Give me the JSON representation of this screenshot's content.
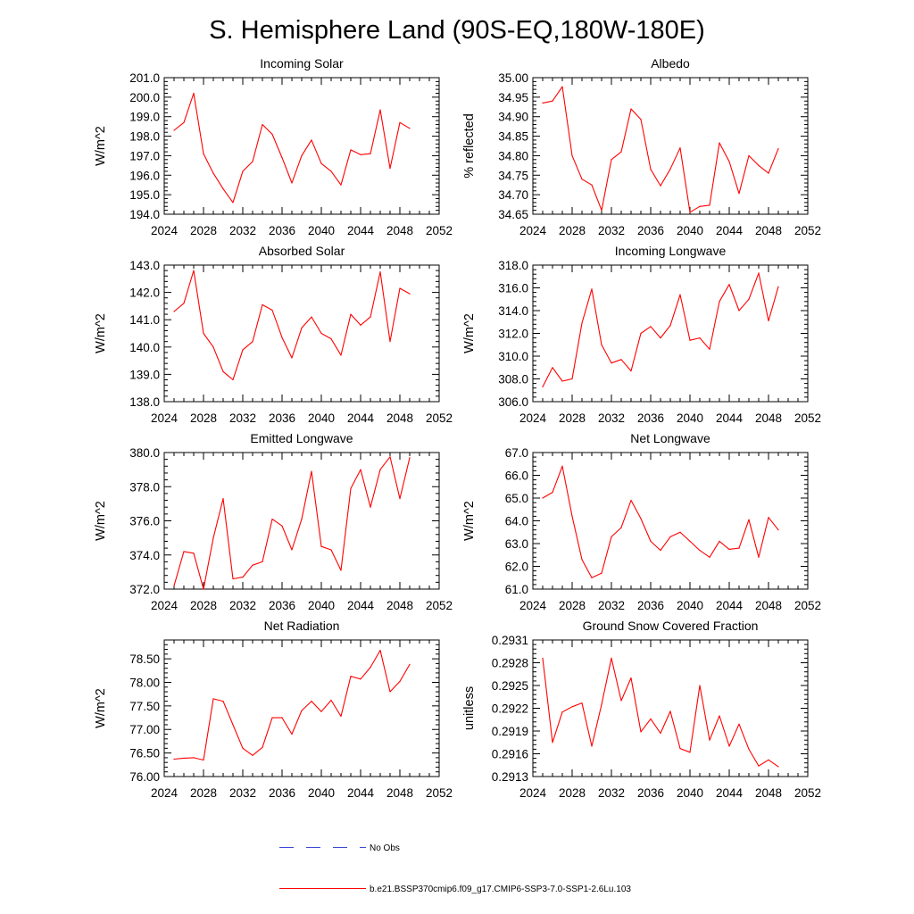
{
  "figure": {
    "title": "S. Hemisphere Land (90S-EQ,180W-180E)",
    "legend": [
      {
        "label": "No Obs",
        "color": "#3b4bd6",
        "style": "dashed"
      },
      {
        "label": "b.e21.BSSP370cmip6.f09_g17.CMIP6-SSP3-7.0-SSP1-2.6Lu.103",
        "color": "#ff0000",
        "style": "solid"
      }
    ]
  },
  "chart_data": [
    {
      "type": "line",
      "title": "Incoming Solar",
      "xlabel": "",
      "ylabel": "W/m^2",
      "xlim": [
        2024,
        2052
      ],
      "ylim": [
        194.0,
        201.0
      ],
      "xticks": [
        2024,
        2028,
        2032,
        2036,
        2040,
        2044,
        2048,
        2052
      ],
      "yticks": [
        "194.0",
        "195.0",
        "196.0",
        "197.0",
        "198.0",
        "199.0",
        "200.0",
        "201.0"
      ],
      "series": [
        {
          "name": "b.e21.BSSP370cmip6.f09_g17.CMIP6-SSP3-7.0-SSP1-2.6Lu.103",
          "color": "#ff0000",
          "x": [
            2025,
            2026,
            2027,
            2028,
            2029,
            2030,
            2031,
            2032,
            2033,
            2034,
            2035,
            2036,
            2037,
            2038,
            2039,
            2040,
            2041,
            2042,
            2043,
            2044,
            2045,
            2046,
            2047,
            2048,
            2049
          ],
          "y": [
            198.3,
            198.7,
            200.2,
            197.1,
            196.1,
            195.3,
            194.6,
            196.2,
            196.7,
            198.6,
            198.1,
            196.9,
            195.6,
            197.0,
            197.8,
            196.6,
            196.2,
            195.5,
            197.3,
            197.05,
            197.1,
            199.35,
            196.35,
            198.7,
            198.4
          ]
        }
      ]
    },
    {
      "type": "line",
      "title": "Albedo",
      "xlabel": "",
      "ylabel": "% reflected",
      "xlim": [
        2024,
        2052
      ],
      "ylim": [
        34.65,
        35.0
      ],
      "xticks": [
        2024,
        2028,
        2032,
        2036,
        2040,
        2044,
        2048,
        2052
      ],
      "yticks": [
        "34.65",
        "34.70",
        "34.75",
        "34.80",
        "34.85",
        "34.90",
        "34.95",
        "35.00"
      ],
      "series": [
        {
          "name": "b.e21.BSSP370cmip6.f09_g17.CMIP6-SSP3-7.0-SSP1-2.6Lu.103",
          "color": "#ff0000",
          "x": [
            2025,
            2026,
            2027,
            2028,
            2029,
            2030,
            2031,
            2032,
            2033,
            2034,
            2035,
            2036,
            2037,
            2038,
            2039,
            2040,
            2041,
            2042,
            2043,
            2044,
            2045,
            2046,
            2047,
            2048,
            2049
          ],
          "y": [
            34.935,
            34.94,
            34.977,
            34.8,
            34.74,
            34.725,
            34.66,
            34.79,
            34.81,
            34.92,
            34.893,
            34.765,
            34.723,
            34.766,
            34.82,
            34.655,
            34.67,
            34.673,
            34.833,
            34.785,
            34.703,
            34.8,
            34.775,
            34.755,
            34.818
          ]
        }
      ]
    },
    {
      "type": "line",
      "title": "Absorbed Solar",
      "xlabel": "",
      "ylabel": "W/m^2",
      "xlim": [
        2024,
        2052
      ],
      "ylim": [
        138.0,
        143.0
      ],
      "xticks": [
        2024,
        2028,
        2032,
        2036,
        2040,
        2044,
        2048,
        2052
      ],
      "yticks": [
        "138.0",
        "139.0",
        "140.0",
        "141.0",
        "142.0",
        "143.0"
      ],
      "series": [
        {
          "name": "b.e21.BSSP370cmip6.f09_g17.CMIP6-SSP3-7.0-SSP1-2.6Lu.103",
          "color": "#ff0000",
          "x": [
            2025,
            2026,
            2027,
            2028,
            2029,
            2030,
            2031,
            2032,
            2033,
            2034,
            2035,
            2036,
            2037,
            2038,
            2039,
            2040,
            2041,
            2042,
            2043,
            2044,
            2045,
            2046,
            2047,
            2048,
            2049
          ],
          "y": [
            141.3,
            141.6,
            142.8,
            140.5,
            140.0,
            139.1,
            138.8,
            139.9,
            140.2,
            141.55,
            141.35,
            140.35,
            139.6,
            140.7,
            141.1,
            140.5,
            140.3,
            139.7,
            141.2,
            140.8,
            141.1,
            142.75,
            140.2,
            142.15,
            141.95
          ]
        }
      ]
    },
    {
      "type": "line",
      "title": "Incoming Longwave",
      "xlabel": "",
      "ylabel": "W/m^2",
      "xlim": [
        2024,
        2052
      ],
      "ylim": [
        306.0,
        318.0
      ],
      "xticks": [
        2024,
        2028,
        2032,
        2036,
        2040,
        2044,
        2048,
        2052
      ],
      "yticks": [
        "306.0",
        "308.0",
        "310.0",
        "312.0",
        "314.0",
        "316.0",
        "318.0"
      ],
      "series": [
        {
          "name": "b.e21.BSSP370cmip6.f09_g17.CMIP6-SSP3-7.0-SSP1-2.6Lu.103",
          "color": "#ff0000",
          "x": [
            2025,
            2026,
            2027,
            2028,
            2029,
            2030,
            2031,
            2032,
            2033,
            2034,
            2035,
            2036,
            2037,
            2038,
            2039,
            2040,
            2041,
            2042,
            2043,
            2044,
            2045,
            2046,
            2047,
            2048,
            2049
          ],
          "y": [
            307.3,
            309.0,
            307.8,
            308.0,
            312.9,
            315.9,
            311.0,
            309.4,
            309.7,
            308.7,
            312.0,
            312.6,
            311.6,
            312.7,
            315.4,
            311.4,
            311.6,
            310.6,
            314.8,
            316.3,
            314.0,
            315.0,
            317.3,
            313.1,
            316.1
          ]
        }
      ]
    },
    {
      "type": "line",
      "title": "Emitted Longwave",
      "xlabel": "",
      "ylabel": "W/m^2",
      "xlim": [
        2024,
        2052
      ],
      "ylim": [
        372.0,
        380.0
      ],
      "xticks": [
        2024,
        2028,
        2032,
        2036,
        2040,
        2044,
        2048,
        2052
      ],
      "yticks": [
        "372.0",
        "374.0",
        "376.0",
        "378.0",
        "380.0"
      ],
      "series": [
        {
          "name": "b.e21.BSSP370cmip6.f09_g17.CMIP6-SSP3-7.0-SSP1-2.6Lu.103",
          "color": "#ff0000",
          "x": [
            2025,
            2026,
            2027,
            2028,
            2029,
            2030,
            2031,
            2032,
            2033,
            2034,
            2035,
            2036,
            2037,
            2038,
            2039,
            2040,
            2041,
            2042,
            2043,
            2044,
            2045,
            2046,
            2047,
            2048,
            2049
          ],
          "y": [
            372.2,
            374.2,
            374.1,
            372.0,
            375.0,
            377.3,
            372.6,
            372.7,
            373.4,
            373.6,
            376.1,
            375.7,
            374.3,
            376.1,
            378.9,
            374.5,
            374.3,
            373.1,
            377.9,
            379.0,
            376.8,
            379.0,
            379.75,
            377.3,
            379.7
          ]
        }
      ]
    },
    {
      "type": "line",
      "title": "Net Longwave",
      "xlabel": "",
      "ylabel": "W/m^2",
      "xlim": [
        2024,
        2052
      ],
      "ylim": [
        61.0,
        67.0
      ],
      "xticks": [
        2024,
        2028,
        2032,
        2036,
        2040,
        2044,
        2048,
        2052
      ],
      "yticks": [
        "61.0",
        "62.0",
        "63.0",
        "64.0",
        "65.0",
        "66.0",
        "67.0"
      ],
      "series": [
        {
          "name": "b.e21.BSSP370cmip6.f09_g17.CMIP6-SSP3-7.0-SSP1-2.6Lu.103",
          "color": "#ff0000",
          "x": [
            2025,
            2026,
            2027,
            2028,
            2029,
            2030,
            2031,
            2032,
            2033,
            2034,
            2035,
            2036,
            2037,
            2038,
            2039,
            2040,
            2041,
            2042,
            2043,
            2044,
            2045,
            2046,
            2047,
            2048,
            2049
          ],
          "y": [
            65.0,
            65.25,
            66.4,
            64.2,
            62.3,
            61.5,
            61.7,
            63.3,
            63.7,
            64.9,
            64.1,
            63.1,
            62.7,
            63.3,
            63.5,
            63.1,
            62.7,
            62.4,
            63.1,
            62.75,
            62.8,
            64.05,
            62.4,
            64.15,
            63.6
          ]
        }
      ]
    },
    {
      "type": "line",
      "title": "Net Radiation",
      "xlabel": "",
      "ylabel": "W/m^2",
      "xlim": [
        2024,
        2052
      ],
      "ylim": [
        76.0,
        78.9
      ],
      "xticks": [
        2024,
        2028,
        2032,
        2036,
        2040,
        2044,
        2048,
        2052
      ],
      "yticks": [
        "76.00",
        "76.50",
        "77.00",
        "77.50",
        "78.00",
        "78.50"
      ],
      "series": [
        {
          "name": "b.e21.BSSP370cmip6.f09_g17.CMIP6-SSP3-7.0-SSP1-2.6Lu.103",
          "color": "#ff0000",
          "x": [
            2025,
            2026,
            2027,
            2028,
            2029,
            2030,
            2031,
            2032,
            2033,
            2034,
            2035,
            2036,
            2037,
            2038,
            2039,
            2040,
            2041,
            2042,
            2043,
            2044,
            2045,
            2046,
            2047,
            2048,
            2049
          ],
          "y": [
            76.37,
            76.39,
            76.4,
            76.35,
            77.65,
            77.6,
            77.1,
            76.6,
            76.45,
            76.62,
            77.25,
            77.25,
            76.9,
            77.4,
            77.6,
            77.38,
            77.62,
            77.28,
            78.13,
            78.07,
            78.32,
            78.68,
            77.8,
            78.02,
            78.38
          ]
        }
      ]
    },
    {
      "type": "line",
      "title": "Ground Snow Covered Fraction",
      "xlabel": "",
      "ylabel": "unitless",
      "xlim": [
        2024,
        2052
      ],
      "ylim": [
        0.2913,
        0.2931
      ],
      "xticks": [
        2024,
        2028,
        2032,
        2036,
        2040,
        2044,
        2048,
        2052
      ],
      "yticks": [
        "0.2913",
        "0.2916",
        "0.2919",
        "0.2922",
        "0.2925",
        "0.2928",
        "0.2931"
      ],
      "series": [
        {
          "name": "b.e21.BSSP370cmip6.f09_g17.CMIP6-SSP3-7.0-SSP1-2.6Lu.103",
          "color": "#ff0000",
          "x": [
            2025,
            2026,
            2027,
            2028,
            2029,
            2030,
            2031,
            2032,
            2033,
            2034,
            2035,
            2036,
            2037,
            2038,
            2039,
            2040,
            2041,
            2042,
            2043,
            2044,
            2045,
            2046,
            2047,
            2048,
            2049
          ],
          "y": [
            0.29286,
            0.29175,
            0.29215,
            0.29222,
            0.29227,
            0.2917,
            0.29225,
            0.29286,
            0.2923,
            0.2926,
            0.29189,
            0.29206,
            0.29187,
            0.29216,
            0.29167,
            0.29162,
            0.2925,
            0.29178,
            0.2921,
            0.2917,
            0.29199,
            0.29166,
            0.29144,
            0.29152,
            0.29143
          ]
        }
      ]
    }
  ]
}
